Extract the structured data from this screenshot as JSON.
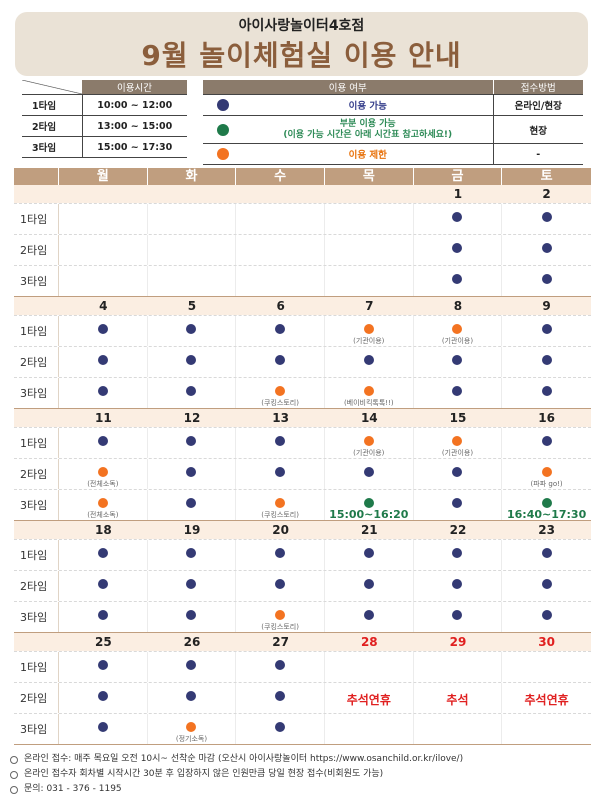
{
  "header": {
    "subtitle": "아이사랑놀이터4호점",
    "title": "9월 놀이체험실 이용 안내"
  },
  "time_table": {
    "header": "이용시간",
    "rows": [
      {
        "label": "1타임",
        "time": "10:00 ~ 12:00"
      },
      {
        "label": "2타임",
        "time": "13:00 ~ 15:00"
      },
      {
        "label": "3타임",
        "time": "15:00 ~ 17:30"
      }
    ]
  },
  "legend_table": {
    "header_usage": "이용 여부",
    "header_receive": "접수방법",
    "rows": [
      {
        "icon": "navy-dot-icon",
        "desc": "이용 가능",
        "desc2": "",
        "receive": "온라인/현장"
      },
      {
        "icon": "green-dot-icon",
        "desc": "부분 이용 가능",
        "desc2": "(이용 가능 시간은 아래 시간표 참고하세요!)",
        "receive": "현장"
      },
      {
        "icon": "orange-dot-icon",
        "desc": "이용 제한",
        "desc2": "",
        "receive": "-"
      }
    ]
  },
  "calendar": {
    "weekdays": [
      "월",
      "화",
      "수",
      "목",
      "금",
      "토"
    ],
    "slot_labels": [
      "1타임",
      "2타임",
      "3타임"
    ],
    "colors": {
      "available": "#343a74",
      "partial": "#1f7a4a",
      "restricted": "#f37321"
    },
    "weeks": [
      {
        "dates": [
          "",
          "",
          "",
          "",
          "1",
          "2"
        ],
        "red": [
          false,
          false,
          false,
          false,
          false,
          false
        ],
        "slots": [
          [
            null,
            null,
            null,
            null,
            {
              "s": "n"
            },
            {
              "s": "n"
            }
          ],
          [
            null,
            null,
            null,
            null,
            {
              "s": "n"
            },
            {
              "s": "n"
            }
          ],
          [
            null,
            null,
            null,
            null,
            {
              "s": "n"
            },
            {
              "s": "n"
            }
          ]
        ]
      },
      {
        "dates": [
          "4",
          "5",
          "6",
          "7",
          "8",
          "9"
        ],
        "red": [
          false,
          false,
          false,
          false,
          false,
          false
        ],
        "slots": [
          [
            {
              "s": "n"
            },
            {
              "s": "n"
            },
            {
              "s": "n"
            },
            {
              "s": "o",
              "note": "(기관이용)"
            },
            {
              "s": "o",
              "note": "(기관이용)"
            },
            {
              "s": "n"
            }
          ],
          [
            {
              "s": "n"
            },
            {
              "s": "n"
            },
            {
              "s": "n"
            },
            {
              "s": "n"
            },
            {
              "s": "n"
            },
            {
              "s": "n"
            }
          ],
          [
            {
              "s": "n"
            },
            {
              "s": "n"
            },
            {
              "s": "o",
              "note": "(쿠킹스토리)"
            },
            {
              "s": "o",
              "note": "(베이비킥톡톡!!)"
            },
            {
              "s": "n"
            },
            {
              "s": "n"
            }
          ]
        ]
      },
      {
        "dates": [
          "11",
          "12",
          "13",
          "14",
          "15",
          "16"
        ],
        "red": [
          false,
          false,
          false,
          false,
          false,
          false
        ],
        "slots": [
          [
            {
              "s": "n"
            },
            {
              "s": "n"
            },
            {
              "s": "n"
            },
            {
              "s": "o",
              "note": "(기관이용)"
            },
            {
              "s": "o",
              "note": "(기관이용)"
            },
            {
              "s": "n"
            }
          ],
          [
            {
              "s": "o",
              "note": "(전체소독)"
            },
            {
              "s": "n"
            },
            {
              "s": "n"
            },
            {
              "s": "n"
            },
            {
              "s": "n"
            },
            {
              "s": "o",
              "note": "(파파 go!)"
            }
          ],
          [
            {
              "s": "o",
              "note": "(전체소독)"
            },
            {
              "s": "n"
            },
            {
              "s": "o",
              "note": "(쿠킹스토리)"
            },
            {
              "s": "g",
              "time": "15:00~16:20"
            },
            {
              "s": "n"
            },
            {
              "s": "g",
              "time": "16:40~17:30"
            }
          ]
        ]
      },
      {
        "dates": [
          "18",
          "19",
          "20",
          "21",
          "22",
          "23"
        ],
        "red": [
          false,
          false,
          false,
          false,
          false,
          false
        ],
        "slots": [
          [
            {
              "s": "n"
            },
            {
              "s": "n"
            },
            {
              "s": "n"
            },
            {
              "s": "n"
            },
            {
              "s": "n"
            },
            {
              "s": "n"
            }
          ],
          [
            {
              "s": "n"
            },
            {
              "s": "n"
            },
            {
              "s": "n"
            },
            {
              "s": "n"
            },
            {
              "s": "n"
            },
            {
              "s": "n"
            }
          ],
          [
            {
              "s": "n"
            },
            {
              "s": "n"
            },
            {
              "s": "o",
              "note": "(쿠킹스토리)"
            },
            {
              "s": "n"
            },
            {
              "s": "n"
            },
            {
              "s": "n"
            }
          ]
        ]
      },
      {
        "dates": [
          "25",
          "26",
          "27",
          "28",
          "29",
          "30"
        ],
        "red": [
          false,
          false,
          false,
          true,
          true,
          true
        ],
        "slots": [
          [
            {
              "s": "n"
            },
            {
              "s": "n"
            },
            {
              "s": "n"
            },
            null,
            null,
            null
          ],
          [
            {
              "s": "n"
            },
            {
              "s": "n"
            },
            {
              "s": "n"
            },
            {
              "s": "h",
              "text": "추석연휴"
            },
            {
              "s": "h",
              "text": "추석"
            },
            {
              "s": "h",
              "text": "추석연휴"
            }
          ],
          [
            {
              "s": "n"
            },
            {
              "s": "o",
              "note": "(정기소독)"
            },
            {
              "s": "n"
            },
            null,
            null,
            null
          ]
        ]
      }
    ]
  },
  "notes": [
    "온라인 접수: 매주 목요일 오전 10시~ 선착순 마감 (오산시 아이사랑놀이터 https://www.osanchild.or.kr/ilove/)",
    "온라인 접수자 회차별 시작시간 30분 후 입장하지 않은 인원만큼 당일 현장 접수(비회원도 가능)",
    "문의: 031 - 376 - 1195"
  ]
}
